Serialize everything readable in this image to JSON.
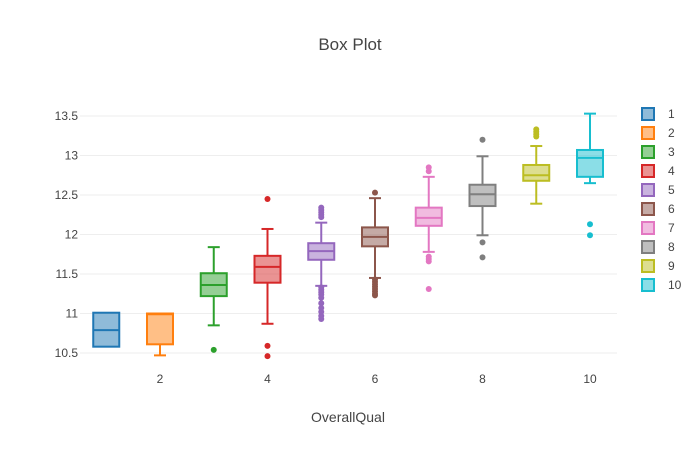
{
  "chart_data": {
    "type": "box",
    "title": "Box Plot",
    "xlabel": "OverallQual",
    "ylabel": "",
    "xlim": [
      0.5,
      10.5
    ],
    "ylim": [
      10.42,
      13.62
    ],
    "grid": true,
    "x_ticks": [
      2,
      4,
      6,
      8,
      10
    ],
    "x_tick_labels": [
      "2",
      "4",
      "6",
      "8",
      "10"
    ],
    "y_ticks": [
      10.5,
      11,
      11.5,
      12,
      12.5,
      13,
      13.5
    ],
    "y_tick_labels": [
      "10.5",
      "11",
      "11.5",
      "12",
      "12.5",
      "13",
      "13.5"
    ],
    "legend_position": "right",
    "series": [
      {
        "name": "1",
        "x": 1,
        "color": "#1f77b4",
        "min": 10.58,
        "q1": 10.58,
        "median": 10.79,
        "q3": 11.01,
        "max": 11.01,
        "outliers": []
      },
      {
        "name": "2",
        "x": 2,
        "color": "#ff7f0e",
        "min": 10.47,
        "q1": 10.61,
        "median": 10.99,
        "q3": 11.0,
        "max": 11.0,
        "outliers": []
      },
      {
        "name": "3",
        "x": 3,
        "color": "#2ca02c",
        "min": 10.85,
        "q1": 11.22,
        "median": 11.36,
        "q3": 11.51,
        "max": 11.84,
        "outliers": [
          10.54
        ]
      },
      {
        "name": "4",
        "x": 4,
        "color": "#d62728",
        "min": 10.87,
        "q1": 11.39,
        "median": 11.59,
        "q3": 11.73,
        "max": 12.07,
        "outliers": [
          12.45,
          10.59,
          10.46
        ]
      },
      {
        "name": "5",
        "x": 5,
        "color": "#9467bd",
        "min": 11.35,
        "q1": 11.68,
        "median": 11.79,
        "q3": 11.89,
        "max": 12.15,
        "outliers": [
          12.34,
          12.31,
          12.28,
          12.25,
          12.22,
          11.33,
          11.3,
          11.27,
          11.24,
          11.2,
          11.13,
          11.07,
          11.02,
          10.97,
          10.93
        ]
      },
      {
        "name": "6",
        "x": 6,
        "color": "#8c564b",
        "min": 11.45,
        "q1": 11.85,
        "median": 11.97,
        "q3": 12.09,
        "max": 12.46,
        "outliers": [
          12.53,
          11.43,
          11.4,
          11.37,
          11.34,
          11.31,
          11.28,
          11.25,
          11.23
        ]
      },
      {
        "name": "7",
        "x": 7,
        "color": "#e377c2",
        "min": 11.78,
        "q1": 12.11,
        "median": 12.21,
        "q3": 12.34,
        "max": 12.73,
        "outliers": [
          12.85,
          12.8,
          11.72,
          11.69,
          11.66,
          11.31
        ]
      },
      {
        "name": "8",
        "x": 8,
        "color": "#7f7f7f",
        "min": 11.99,
        "q1": 12.36,
        "median": 12.51,
        "q3": 12.63,
        "max": 12.99,
        "outliers": [
          13.2,
          11.9,
          11.71
        ]
      },
      {
        "name": "9",
        "x": 9,
        "color": "#bcbd22",
        "min": 12.39,
        "q1": 12.68,
        "median": 12.75,
        "q3": 12.88,
        "max": 13.12,
        "outliers": [
          13.33,
          13.3,
          13.27,
          13.24
        ]
      },
      {
        "name": "10",
        "x": 10,
        "color": "#17becf",
        "min": 12.65,
        "q1": 12.73,
        "median": 12.97,
        "q3": 13.07,
        "max": 13.53,
        "outliers": [
          12.13,
          11.99
        ]
      }
    ]
  }
}
